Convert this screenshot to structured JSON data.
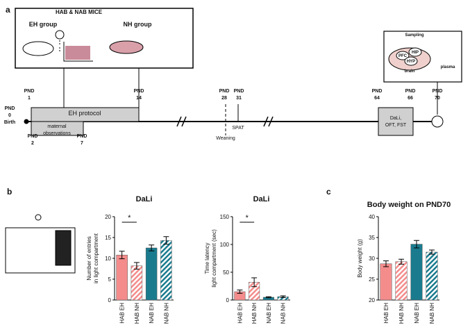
{
  "panels": [
    "a",
    "b",
    "c"
  ],
  "timeline": {
    "title": "HAB & NAB MICE",
    "groups": [
      "EH group",
      "NH group"
    ],
    "marks": [
      [
        "PND",
        "0",
        "Birth"
      ],
      [
        "PND",
        "1"
      ],
      [
        "PND",
        "14"
      ],
      [
        "PND",
        "2"
      ],
      [
        "PND",
        "7"
      ],
      [
        "PND",
        "28"
      ],
      [
        "PND",
        "31"
      ],
      [
        "PND",
        "64"
      ],
      [
        "PND",
        "66"
      ],
      [
        "PND",
        "70"
      ]
    ],
    "phases": [
      [
        "EH protocol"
      ],
      [
        "maternal",
        "observations"
      ],
      [
        "Weaning"
      ],
      [
        "SPAT"
      ],
      [
        "DaLi,",
        "OFT, FST"
      ]
    ],
    "sampling": [
      "Sampling",
      "PFC",
      "HIP",
      "HYP",
      "brain",
      "plasma"
    ]
  },
  "chart_data": [
    {
      "type": "bar",
      "title": "DaLi",
      "ylabel": [
        "Number of entries",
        "in light compartment"
      ],
      "categories": [
        "HAB EH",
        "HAB NH",
        "NAB EH",
        "NAB NH"
      ],
      "values": [
        10.8,
        8.2,
        12.5,
        14.3
      ],
      "errors": [
        0.9,
        0.8,
        0.7,
        0.9
      ],
      "colors": [
        "#f48c8c",
        "#f48c8c",
        "#1a7b8e",
        "#1a7b8e"
      ],
      "hatch": [
        false,
        true,
        false,
        true
      ],
      "ylim": [
        0,
        20
      ],
      "yticks": [
        0,
        5,
        10,
        15,
        20
      ],
      "annotation": "*"
    },
    {
      "type": "bar",
      "title": "DaLi",
      "ylabel": [
        "Time latency",
        "light compartment (sec)"
      ],
      "categories": [
        "HAB EH",
        "HAB NH",
        "NAB EH",
        "NAB NH"
      ],
      "values": [
        15,
        32,
        5,
        6
      ],
      "errors": [
        3,
        8,
        1,
        1.5
      ],
      "colors": [
        "#f48c8c",
        "#f48c8c",
        "#1a7b8e",
        "#1a7b8e"
      ],
      "hatch": [
        false,
        true,
        false,
        true
      ],
      "ylim": [
        0,
        150
      ],
      "yticks": [
        0,
        50,
        100,
        150
      ],
      "annotation": "*"
    },
    {
      "type": "bar",
      "title": "Body weight on PND70",
      "ylabel": [
        "Body weight (g)"
      ],
      "categories": [
        "HAB EH",
        "HAB NH",
        "NAB EH",
        "NAB NH"
      ],
      "values": [
        28.7,
        29.2,
        33.4,
        31.5
      ],
      "errors": [
        0.7,
        0.6,
        0.9,
        0.5
      ],
      "colors": [
        "#f48c8c",
        "#f48c8c",
        "#1a7b8e",
        "#1a7b8e"
      ],
      "hatch": [
        false,
        true,
        false,
        true
      ],
      "ylim": [
        20,
        40
      ],
      "yticks": [
        20,
        25,
        30,
        35,
        40
      ]
    }
  ]
}
